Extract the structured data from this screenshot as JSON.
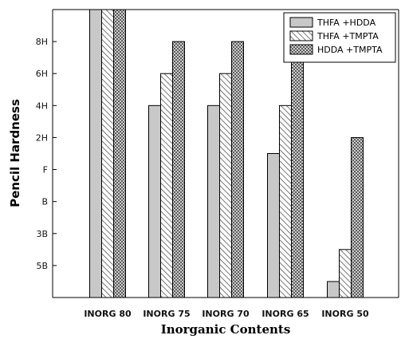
{
  "chart_data": {
    "type": "bar",
    "xlabel": "Inorganic Contents",
    "ylabel": "Pencil Hardness",
    "categories": [
      "INORG 80",
      "INORG 75",
      "INORG 70",
      "INORG 65",
      "INORG 50"
    ],
    "y_ticks": [
      "5B",
      "3B",
      "B",
      "F",
      "2H",
      "4H",
      "6H",
      "8H"
    ],
    "y_tick_values": [
      1,
      2,
      3,
      4,
      5,
      6,
      7,
      8
    ],
    "ylim": [
      0,
      9
    ],
    "grid": false,
    "legend_position": "top-right",
    "series": [
      {
        "name": "THFA +HDDA",
        "pattern": "solid-gray",
        "color": "#c8c8c8",
        "values": [
          9,
          6,
          6,
          4.5,
          0.5
        ]
      },
      {
        "name": "THFA +TMPTA",
        "pattern": "diagonal-hatch",
        "color": "#aaaaaa",
        "values": [
          9,
          7,
          7,
          6,
          1.5
        ]
      },
      {
        "name": "HDDA +TMPTA",
        "pattern": "crosshatch",
        "color": "#707070",
        "values": [
          9,
          8,
          8,
          7.5,
          5
        ]
      }
    ]
  }
}
